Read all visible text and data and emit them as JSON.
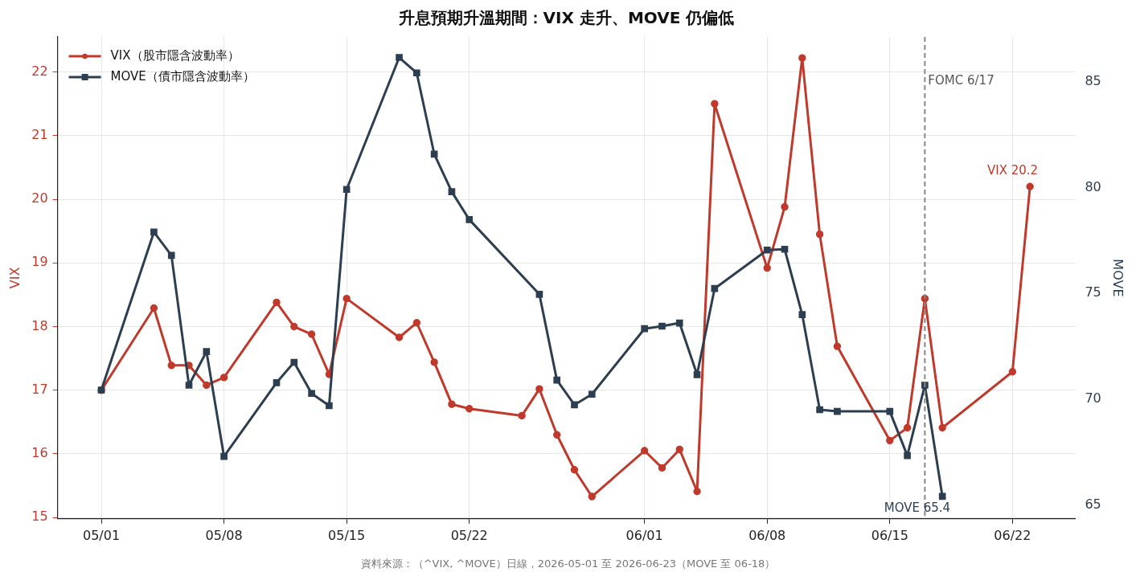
{
  "chart_data": {
    "type": "line",
    "title": "升息預期升溫期間：VIX 走升、MOVE 仍偏低",
    "ylabel": "VIX",
    "y2label": "MOVE",
    "xlim": [
      "2026-04-28T12:00",
      "2026-06-25T14:00"
    ],
    "xticks": [
      {
        "value": "2026-05-01",
        "label": "05/01"
      },
      {
        "value": "2026-05-08",
        "label": "05/08"
      },
      {
        "value": "2026-05-15",
        "label": "05/15"
      },
      {
        "value": "2026-05-22",
        "label": "05/22"
      },
      {
        "value": "2026-06-01",
        "label": "06/01"
      },
      {
        "value": "2026-06-08",
        "label": "06/08"
      },
      {
        "value": "2026-06-15",
        "label": "06/15"
      },
      {
        "value": "2026-06-22",
        "label": "06/22"
      }
    ],
    "ylim": [
      14.98,
      22.55
    ],
    "yticks": [
      15,
      16,
      17,
      18,
      19,
      20,
      21,
      22
    ],
    "y2lim": [
      64.34,
      87.13
    ],
    "y2ticks": [
      65,
      70,
      75,
      80,
      85
    ],
    "grid": true,
    "legend": "top left",
    "line_style": "solid",
    "series": [
      {
        "name": "VIX（股市隱含波動率）",
        "color": "#c0392b",
        "marker": "circle",
        "x": [
          "2026-05-01",
          "2026-05-04",
          "2026-05-05",
          "2026-05-06",
          "2026-05-07",
          "2026-05-08",
          "2026-05-11",
          "2026-05-12",
          "2026-05-13",
          "2026-05-14",
          "2026-05-15",
          "2026-05-18",
          "2026-05-19",
          "2026-05-20",
          "2026-05-21",
          "2026-05-22",
          "2026-05-25",
          "2026-05-26",
          "2026-05-27",
          "2026-05-28",
          "2026-05-29",
          "2026-06-01",
          "2026-06-02",
          "2026-06-03",
          "2026-06-04",
          "2026-06-05",
          "2026-06-08",
          "2026-06-09",
          "2026-06-10",
          "2026-06-11",
          "2026-06-12",
          "2026-06-15",
          "2026-06-16",
          "2026-06-17",
          "2026-06-18",
          "2026-06-22",
          "2026-06-23"
        ],
        "values": [
          17.0,
          18.29,
          17.39,
          17.39,
          17.08,
          17.2,
          18.38,
          18.0,
          17.88,
          17.25,
          18.44,
          17.83,
          18.06,
          17.44,
          16.78,
          16.71,
          16.6,
          17.02,
          16.3,
          15.75,
          15.33,
          16.05,
          15.78,
          16.07,
          15.41,
          21.5,
          18.92,
          19.88,
          22.22,
          19.45,
          17.69,
          16.21,
          16.41,
          18.44,
          16.41,
          17.29,
          20.2
        ],
        "value_labels": [
          null,
          null,
          null,
          null,
          null,
          null,
          null,
          null,
          null,
          null,
          null,
          null,
          null,
          null,
          null,
          null,
          null,
          null,
          null,
          null,
          null,
          null,
          null,
          null,
          null,
          null,
          null,
          null,
          null,
          null,
          null,
          null,
          null,
          null,
          null,
          null,
          "VIX 20.2"
        ]
      },
      {
        "name": "MOVE（債市隱含波動率）",
        "color": "#2c3e50",
        "marker": "square",
        "axis": "y2",
        "x": [
          "2026-05-01",
          "2026-05-04",
          "2026-05-05",
          "2026-05-06",
          "2026-05-07",
          "2026-05-08",
          "2026-05-11",
          "2026-05-12",
          "2026-05-13",
          "2026-05-14",
          "2026-05-15",
          "2026-05-18",
          "2026-05-19",
          "2026-05-20",
          "2026-05-21",
          "2026-05-22",
          "2026-05-26",
          "2026-05-27",
          "2026-05-28",
          "2026-05-29",
          "2026-06-01",
          "2026-06-02",
          "2026-06-03",
          "2026-06-04",
          "2026-06-05",
          "2026-06-08",
          "2026-06-09",
          "2026-06-10",
          "2026-06-11",
          "2026-06-12",
          "2026-06-15",
          "2026-06-16",
          "2026-06-17",
          "2026-06-18"
        ],
        "values": [
          70.43,
          77.9,
          76.8,
          70.66,
          72.25,
          67.29,
          70.78,
          71.74,
          70.27,
          69.69,
          79.92,
          86.16,
          85.43,
          81.59,
          79.81,
          78.49,
          74.96,
          70.9,
          69.73,
          70.23,
          73.33,
          73.45,
          73.6,
          71.16,
          75.23,
          77.05,
          77.09,
          74.0,
          69.5,
          69.42,
          69.42,
          67.33,
          70.66,
          65.4
        ],
        "value_labels": [
          null,
          null,
          null,
          null,
          null,
          null,
          null,
          null,
          null,
          null,
          null,
          null,
          null,
          null,
          null,
          null,
          null,
          null,
          null,
          null,
          null,
          null,
          null,
          null,
          null,
          null,
          null,
          null,
          null,
          null,
          null,
          null,
          null,
          "MOVE 65.4"
        ]
      }
    ],
    "ref_lines": [
      {
        "axis": "x",
        "value": "2026-06-17",
        "label": "FOMC 6/17",
        "color": "#888888",
        "line_style": "dashed"
      }
    ],
    "annotations": [
      "資料來源：（^VIX, ^MOVE）日線，2026-05-01 至 2026-06-23（MOVE 至 06-18）"
    ]
  }
}
